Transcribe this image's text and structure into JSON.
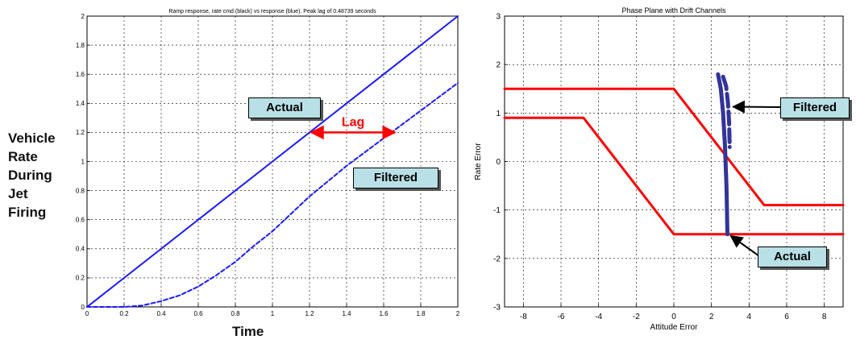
{
  "left_side_label": [
    "Vehicle",
    "Rate",
    "During",
    "Jet",
    "Firing"
  ],
  "left_big_xlabel": "Time",
  "callouts": {
    "left_actual": "Actual",
    "left_filtered": "Filtered",
    "left_lag": "Lag",
    "right_filtered": "Filtered",
    "right_actual": "Actual"
  },
  "colors": {
    "blue": "#1a1aff",
    "navy": "#33339a",
    "red": "#ff0000",
    "box": "#b9e0e6"
  },
  "chart_data": [
    {
      "type": "line",
      "title": "Ramp response, rate cmd (black) vs response (blue). Peak lag of 0.48739 seconds",
      "xlabel": "",
      "ylabel": "",
      "xlim": [
        0,
        2
      ],
      "ylim": [
        0,
        2
      ],
      "xticks": [
        0,
        0.2,
        0.4,
        0.6,
        0.8,
        1,
        1.2,
        1.4,
        1.6,
        1.8,
        2
      ],
      "yticks": [
        0,
        0.2,
        0.4,
        0.6,
        0.8,
        1,
        1.2,
        1.4,
        1.6,
        1.8,
        2
      ],
      "xtick_labels": [
        "0",
        "0.2",
        "0.4",
        "0.6",
        "0.8",
        "1",
        "1.2",
        "1.4",
        "1.6",
        "1.8",
        "2"
      ],
      "ytick_labels": [
        "0",
        "0.2",
        "0.4",
        "0.6",
        "0.8",
        "1",
        "1.2",
        "1.4",
        "1.6",
        "1.8",
        "2"
      ],
      "grid": true,
      "series": [
        {
          "style": "solid",
          "color": "#1a1aff",
          "x": [
            0,
            2
          ],
          "y": [
            0,
            2
          ]
        },
        {
          "style": "dashed",
          "color": "#1a1aff",
          "x": [
            0,
            0.2,
            0.3,
            0.4,
            0.5,
            0.6,
            0.7,
            0.8,
            0.9,
            1.0,
            1.2,
            1.4,
            1.6,
            1.8,
            2.0
          ],
          "y": [
            0,
            0,
            0.01,
            0.04,
            0.08,
            0.14,
            0.22,
            0.31,
            0.42,
            0.52,
            0.76,
            0.97,
            1.16,
            1.35,
            1.54
          ]
        }
      ],
      "annotation": {
        "label": "Lag",
        "x_from": 1.2,
        "x_to": 1.67,
        "y": 1.2,
        "color": "#ff0000"
      }
    },
    {
      "type": "line",
      "title": "Phase Plane with Drift Channels",
      "xlabel": "Attitude Error",
      "ylabel": "Rate Error",
      "xlim": [
        -9,
        9
      ],
      "ylim": [
        -3,
        3
      ],
      "xticks": [
        -8,
        -6,
        -4,
        -2,
        0,
        2,
        4,
        6,
        8
      ],
      "yticks": [
        -3,
        -2,
        -1,
        0,
        1,
        2,
        3
      ],
      "xtick_labels": [
        "-8",
        "-6",
        "-4",
        "-2",
        "0",
        "2",
        "4",
        "6",
        "8"
      ],
      "ytick_labels": [
        "-3",
        "-2",
        "-1",
        "0",
        "1",
        "2",
        "3"
      ],
      "grid": true,
      "series": [
        {
          "style": "solid",
          "color": "#ff0000",
          "x": [
            -9,
            0,
            4.8,
            9
          ],
          "y": [
            1.5,
            1.5,
            -0.9,
            -0.9
          ]
        },
        {
          "style": "solid",
          "color": "#ff0000",
          "x": [
            -9,
            -4.8,
            0,
            9
          ],
          "y": [
            0.9,
            0.9,
            -1.5,
            -1.5
          ]
        },
        {
          "style": "solid",
          "color": "#33339a",
          "width": "thick",
          "x": [
            2.35,
            2.5,
            2.62,
            2.72,
            2.8,
            2.85
          ],
          "y": [
            1.8,
            1.5,
            1.0,
            0.3,
            -0.5,
            -1.5
          ]
        },
        {
          "style": "dashed",
          "color": "#33339a",
          "width": "thick",
          "x": [
            2.62,
            2.78,
            2.88,
            2.94,
            2.97
          ],
          "y": [
            1.75,
            1.55,
            1.2,
            0.8,
            0.3
          ]
        }
      ]
    }
  ]
}
